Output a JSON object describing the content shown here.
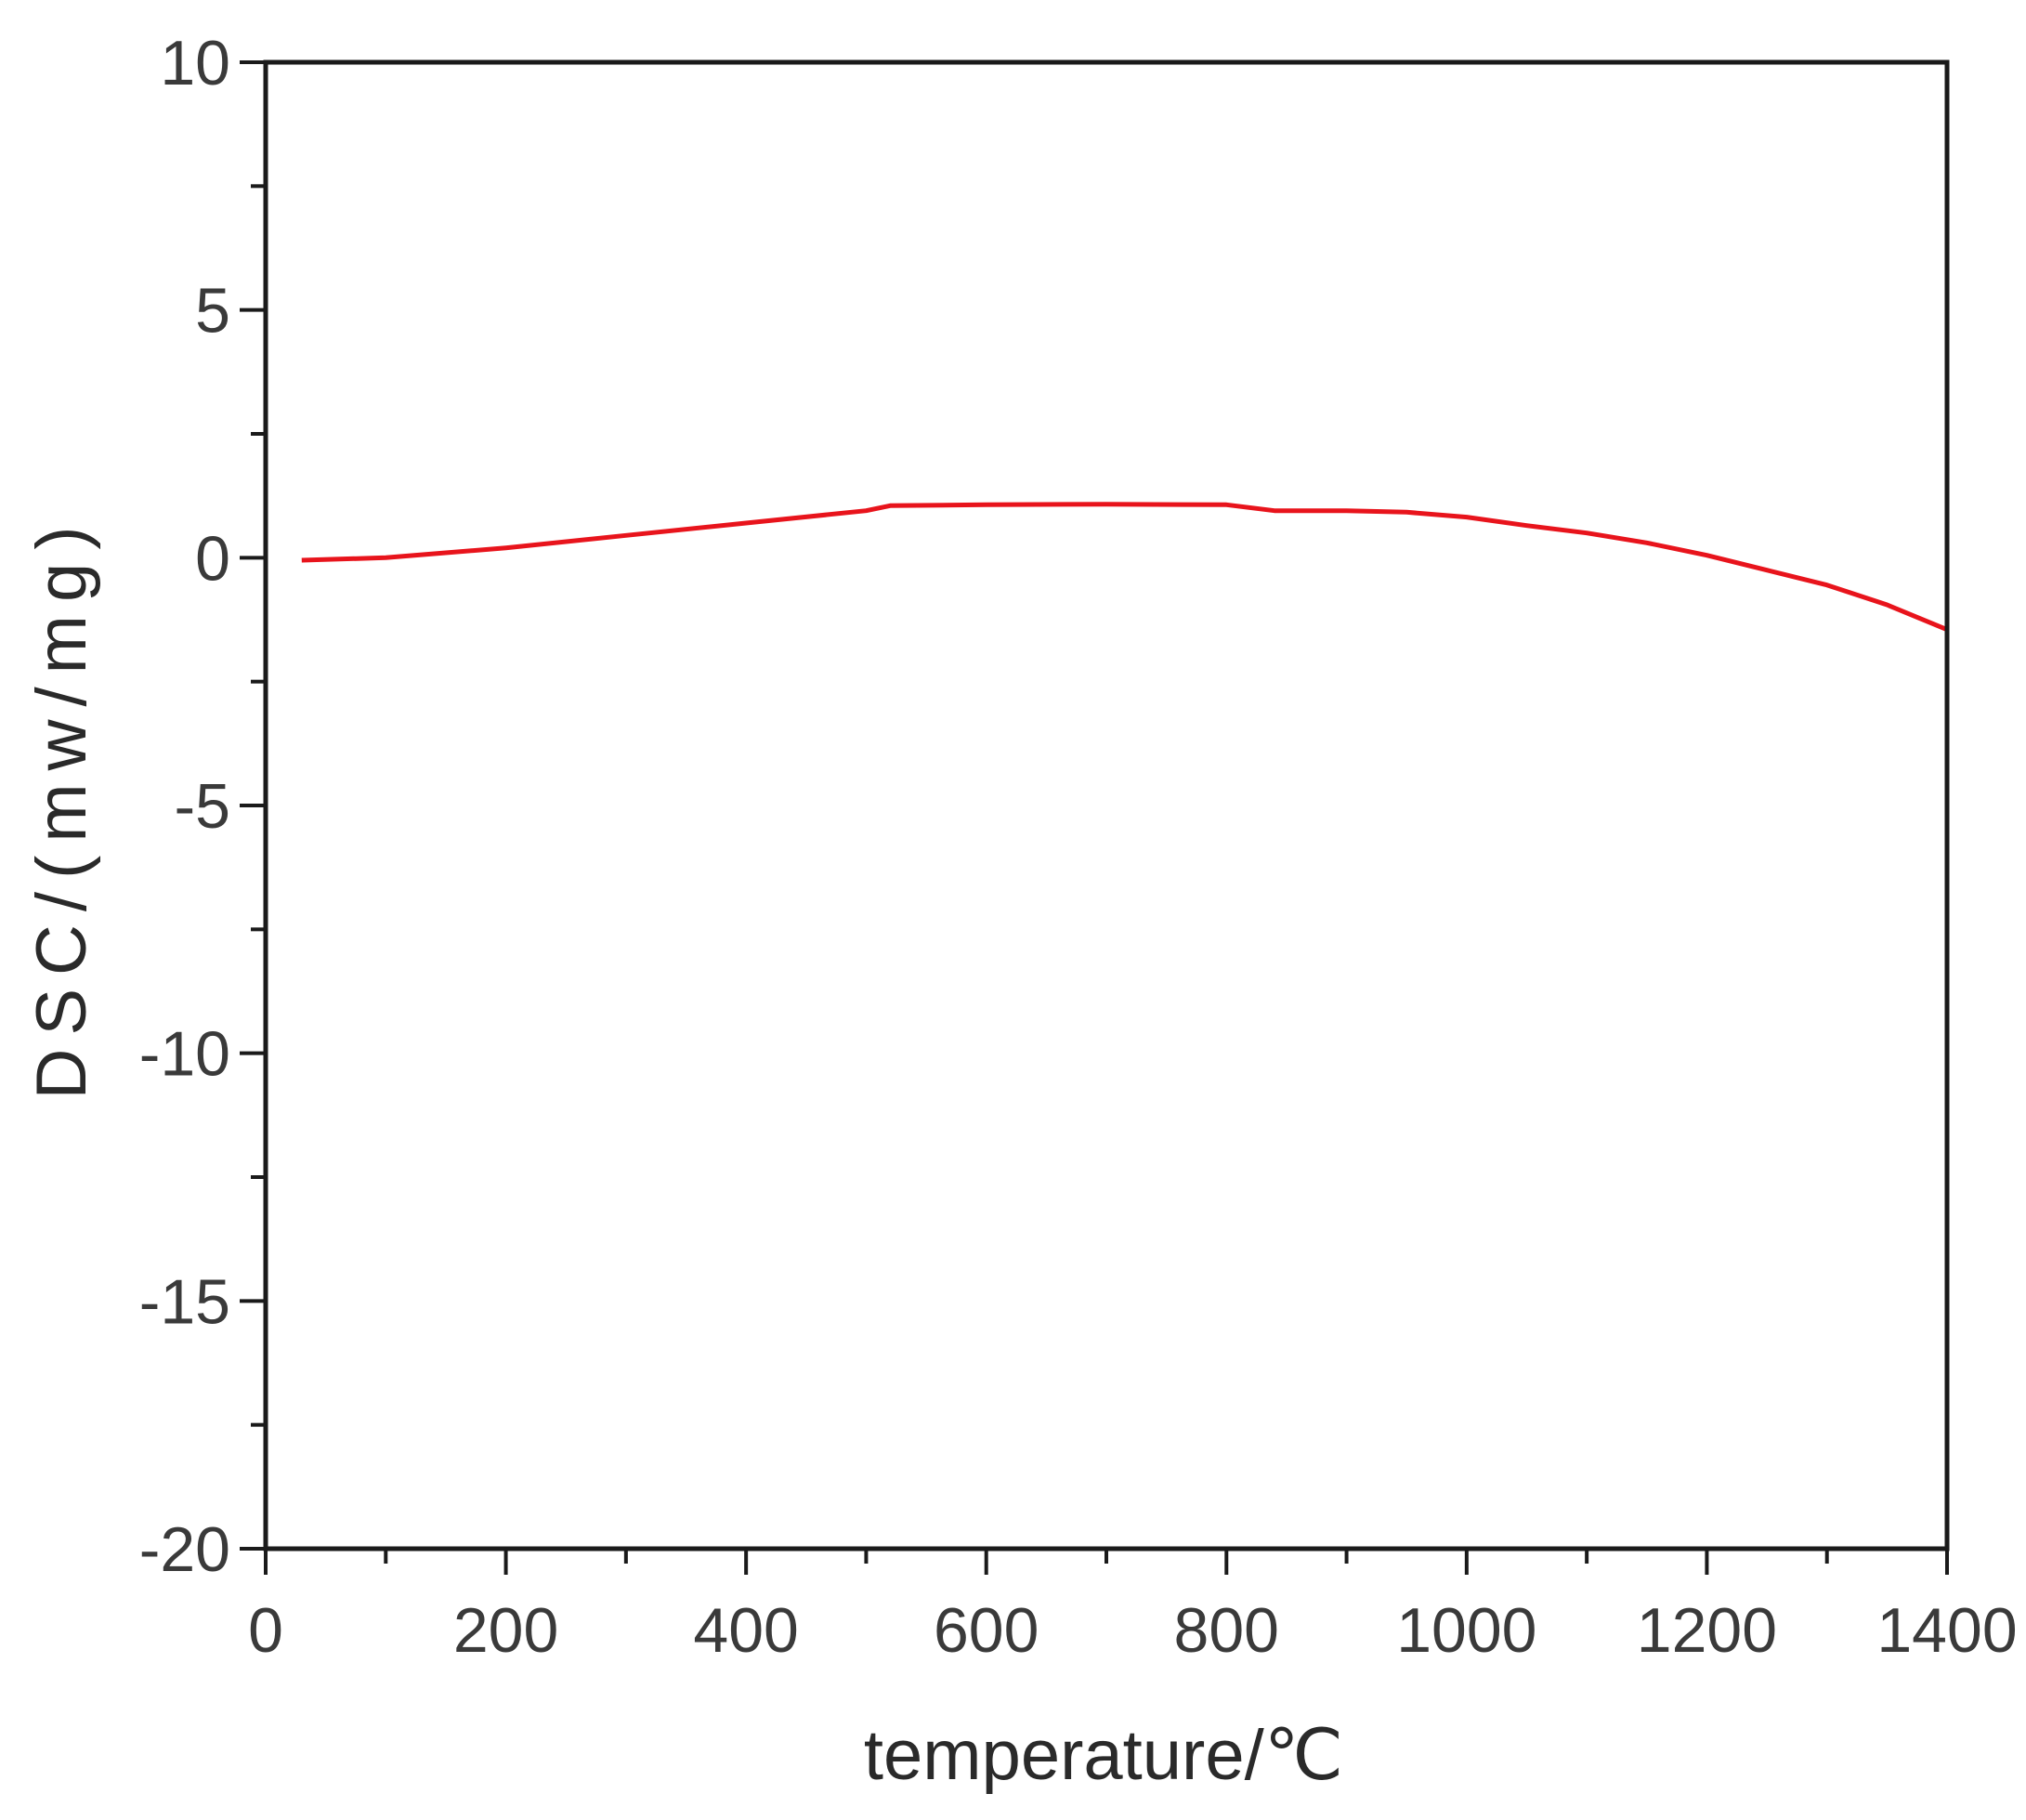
{
  "chart_data": {
    "type": "line",
    "title": "",
    "xlabel": "temperature/℃",
    "ylabel": "DSC/(mw/mg)",
    "xlim": [
      0,
      1400
    ],
    "ylim": [
      -20,
      10
    ],
    "x_ticks": [
      0,
      200,
      400,
      600,
      800,
      1000,
      1200,
      1400
    ],
    "y_ticks": [
      10,
      5,
      0,
      -5,
      -10,
      -15,
      -20
    ],
    "x_tick_labels": [
      "0",
      "200",
      "400",
      "600",
      "800",
      "1000",
      "1200",
      "1400"
    ],
    "y_tick_labels": [
      "10",
      "5",
      "0",
      "-5",
      "-10",
      "-15",
      "-20"
    ],
    "x_minor_step": 100,
    "y_minor_step": 2.5,
    "grid": false,
    "series": [
      {
        "color": "#e8141c",
        "x": [
          30,
          100,
          200,
          300,
          400,
          500,
          520,
          600,
          700,
          800,
          840,
          900,
          950,
          1000,
          1050,
          1100,
          1150,
          1200,
          1250,
          1300,
          1350,
          1400
        ],
        "y": [
          -0.05,
          0.0,
          0.2,
          0.45,
          0.7,
          0.95,
          1.05,
          1.07,
          1.08,
          1.07,
          0.95,
          0.95,
          0.92,
          0.82,
          0.65,
          0.5,
          0.3,
          0.05,
          -0.25,
          -0.55,
          -0.95,
          -1.45
        ]
      }
    ]
  }
}
